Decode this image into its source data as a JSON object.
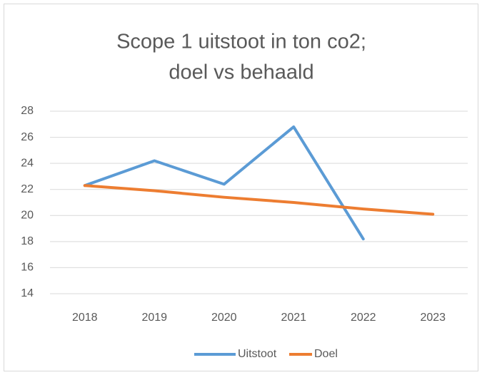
{
  "chart_data": {
    "type": "line",
    "title": [
      "Scope 1 uitstoot in ton co2;",
      "doel vs behaald"
    ],
    "categories": [
      "2018",
      "2019",
      "2020",
      "2021",
      "2022",
      "2023"
    ],
    "series": [
      {
        "name": "Uitstoot",
        "color": "#5b9bd5",
        "values": [
          22.3,
          24.2,
          22.4,
          26.8,
          18.2,
          null
        ]
      },
      {
        "name": "Doel",
        "color": "#ed7d31",
        "values": [
          22.3,
          21.9,
          21.4,
          21.0,
          20.5,
          20.1
        ]
      }
    ],
    "ylim": [
      14,
      28
    ],
    "yticks": [
      14,
      16,
      18,
      20,
      22,
      24,
      26,
      28
    ],
    "grid": true,
    "legend": "bottom"
  }
}
